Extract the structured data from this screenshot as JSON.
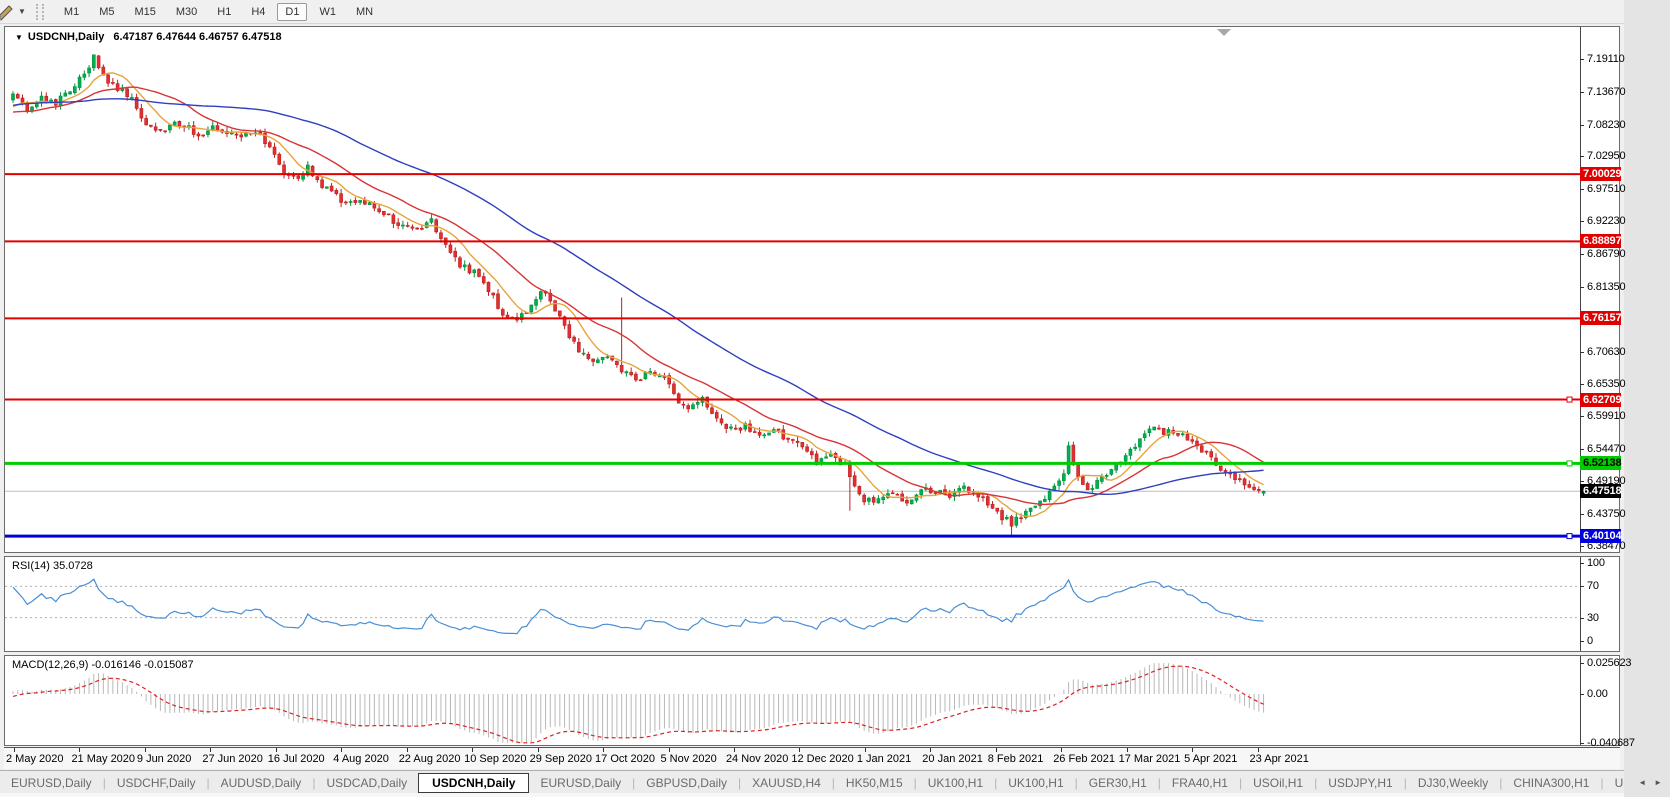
{
  "toolbar": {
    "dropdown_caret": "▼",
    "timeframes": [
      "M1",
      "M5",
      "M15",
      "M30",
      "H1",
      "H4",
      "D1",
      "W1",
      "MN"
    ],
    "active_timeframe": "D1"
  },
  "chart_window": {
    "title": {
      "collapse_caret": "▼",
      "symbol_label": "USDCNH,Daily",
      "ohlc_text": "6.47187 6.47644 6.46757 6.47518"
    }
  },
  "chart_data": {
    "type": "candlestick",
    "symbol": "USDCNH",
    "timeframe": "Daily",
    "current_bar": {
      "open": 6.47187,
      "high": 6.47644,
      "low": 6.46757,
      "close": 6.47518
    },
    "ylim": [
      6.3747,
      7.2439
    ],
    "y_axis_ticks": [
      "7.19110",
      "7.13670",
      "7.08230",
      "7.02950",
      "6.97510",
      "6.92230",
      "6.86790",
      "6.81350",
      "6.70630",
      "6.65350",
      "6.59910",
      "6.54470",
      "6.49190",
      "6.43750",
      "6.38470"
    ],
    "x_axis": {
      "x0": 8,
      "dx": 4.755,
      "date_x0": 10,
      "date_dx": 65.45,
      "dates": [
        "2 May 2020",
        "21 May 2020",
        "9 Jun 2020",
        "27 Jun 2020",
        "16 Jul 2020",
        "4 Aug 2020",
        "22 Aug 2020",
        "10 Sep 2020",
        "29 Sep 2020",
        "17 Oct 2020",
        "5 Nov 2020",
        "24 Nov 2020",
        "12 Dec 2020",
        "1 Jan 2021",
        "20 Jan 2021",
        "8 Feb 2021",
        "26 Feb 2021",
        "17 Mar 2021",
        "5 Apr 2021",
        "23 Apr 2021"
      ]
    },
    "hlines": [
      {
        "price": 7.00029,
        "label": "7.00029",
        "color": "#e00000",
        "thickness": 2,
        "tag_text": "#ffffff",
        "anchor": false
      },
      {
        "price": 6.88897,
        "label": "6.88897",
        "color": "#e00000",
        "thickness": 2,
        "tag_text": "#ffffff",
        "anchor": false
      },
      {
        "price": 6.76157,
        "label": "6.76157",
        "color": "#e00000",
        "thickness": 2,
        "tag_text": "#ffffff",
        "anchor": false
      },
      {
        "price": 6.62709,
        "label": "6.62709",
        "color": "#e00000",
        "thickness": 2,
        "tag_text": "#ffffff",
        "anchor": true
      },
      {
        "price": 6.52138,
        "label": "6.52138",
        "color": "#00cc00",
        "thickness": 3,
        "tag_text": "#000000",
        "anchor": true
      },
      {
        "price": 6.40104,
        "label": "6.40104",
        "color": "#0000dd",
        "thickness": 3,
        "tag_text": "#ffffff",
        "anchor": true
      }
    ],
    "current_price": {
      "price": 6.47518,
      "label": "6.47518",
      "line_color": "#bdbdbd",
      "tag_bg": "#000000",
      "tag_text": "#ffffff"
    },
    "shift_marker_x": 1219,
    "candles": {
      "pre_bars": 60,
      "last_index": 263,
      "up_fill": "#00b050",
      "up_stroke": "#008f3c",
      "down_fill": "#e03030",
      "down_stroke": "#bf1f1f",
      "close_waypoints": [
        [
          -60,
          7.03
        ],
        [
          -45,
          7.12
        ],
        [
          -30,
          7.15
        ],
        [
          -15,
          7.09
        ],
        [
          -5,
          7.1
        ],
        [
          0,
          7.128
        ],
        [
          3,
          7.108
        ],
        [
          6,
          7.125
        ],
        [
          9,
          7.118
        ],
        [
          12,
          7.142
        ],
        [
          15,
          7.168
        ],
        [
          17,
          7.192
        ],
        [
          19,
          7.162
        ],
        [
          22,
          7.144
        ],
        [
          25,
          7.126
        ],
        [
          28,
          7.082
        ],
        [
          31,
          7.072
        ],
        [
          34,
          7.088
        ],
        [
          37,
          7.076
        ],
        [
          40,
          7.062
        ],
        [
          42,
          7.078
        ],
        [
          45,
          7.068
        ],
        [
          48,
          7.058
        ],
        [
          51,
          7.072
        ],
        [
          54,
          7.044
        ],
        [
          57,
          7.004
        ],
        [
          60,
          6.992
        ],
        [
          62,
          7.012
        ],
        [
          65,
          6.978
        ],
        [
          68,
          6.966
        ],
        [
          70,
          6.952
        ],
        [
          73,
          6.962
        ],
        [
          76,
          6.942
        ],
        [
          79,
          6.93
        ],
        [
          82,
          6.912
        ],
        [
          85,
          6.908
        ],
        [
          88,
          6.922
        ],
        [
          91,
          6.882
        ],
        [
          94,
          6.848
        ],
        [
          97,
          6.838
        ],
        [
          100,
          6.806
        ],
        [
          103,
          6.772
        ],
        [
          106,
          6.758
        ],
        [
          109,
          6.782
        ],
        [
          111,
          6.806
        ],
        [
          113,
          6.79
        ],
        [
          116,
          6.746
        ],
        [
          119,
          6.708
        ],
        [
          122,
          6.692
        ],
        [
          125,
          6.702
        ],
        [
          128,
          6.678
        ],
        [
          131,
          6.658
        ],
        [
          134,
          6.672
        ],
        [
          137,
          6.662
        ],
        [
          139,
          6.632
        ],
        [
          142,
          6.612
        ],
        [
          145,
          6.628
        ],
        [
          148,
          6.592
        ],
        [
          151,
          6.578
        ],
        [
          154,
          6.582
        ],
        [
          157,
          6.568
        ],
        [
          160,
          6.578
        ],
        [
          163,
          6.558
        ],
        [
          166,
          6.548
        ],
        [
          169,
          6.525
        ],
        [
          172,
          6.532
        ],
        [
          175,
          6.52
        ],
        [
          177,
          6.478
        ],
        [
          179,
          6.458
        ],
        [
          182,
          6.462
        ],
        [
          185,
          6.472
        ],
        [
          188,
          6.455
        ],
        [
          191,
          6.482
        ],
        [
          194,
          6.476
        ],
        [
          197,
          6.462
        ],
        [
          200,
          6.482
        ],
        [
          203,
          6.468
        ],
        [
          206,
          6.448
        ],
        [
          208,
          6.432
        ],
        [
          210,
          6.422
        ],
        [
          213,
          6.442
        ],
        [
          216,
          6.462
        ],
        [
          219,
          6.478
        ],
        [
          221,
          6.505
        ],
        [
          222,
          6.545
        ],
        [
          224,
          6.502
        ],
        [
          226,
          6.478
        ],
        [
          229,
          6.498
        ],
        [
          232,
          6.518
        ],
        [
          235,
          6.54
        ],
        [
          238,
          6.568
        ],
        [
          240,
          6.578
        ],
        [
          243,
          6.572
        ],
        [
          246,
          6.568
        ],
        [
          248,
          6.556
        ],
        [
          250,
          6.545
        ],
        [
          252,
          6.53
        ],
        [
          254,
          6.515
        ],
        [
          256,
          6.5
        ],
        [
          258,
          6.49
        ],
        [
          260,
          6.482
        ],
        [
          263,
          6.47518
        ]
      ],
      "spikes": [
        {
          "i": 17,
          "high": 7.196
        },
        {
          "i": 128,
          "high": 6.796
        },
        {
          "i": 176,
          "low": 6.443
        },
        {
          "i": 210,
          "low": 6.4015
        },
        {
          "i": 222,
          "high": 6.556
        }
      ],
      "last_candle": [
        6.47187,
        6.47644,
        6.46757,
        6.47518
      ]
    },
    "moving_averages": [
      {
        "name": "fast-ma",
        "period": 8,
        "color": "#e8a33c"
      },
      {
        "name": "medium-ma",
        "period": 21,
        "color": "#d93434"
      },
      {
        "name": "slow-ma",
        "period": 55,
        "color": "#2f3fbf"
      }
    ],
    "indicators": {
      "rsi": {
        "label": "RSI(14) 35.0728",
        "period": 14,
        "value": 35.0728,
        "scale_ticks": [
          "100",
          "70",
          "30",
          "0"
        ],
        "levels": [
          70,
          30
        ],
        "line_color": "#4a8fd4",
        "level_color": "#b0b0b0"
      },
      "macd": {
        "label": "MACD(12,26,9) -0.016146 -0.015087",
        "fast": 12,
        "slow": 26,
        "signal": 9,
        "main_value": -0.016146,
        "signal_value": -0.015087,
        "scale_ticks": [
          "0.025623",
          "0.00",
          "-0.040687"
        ],
        "scale_values": [
          0.025623,
          0.0,
          -0.040687
        ],
        "hist_color": "#b8b8b8",
        "signal_color": "#dd2222"
      }
    }
  },
  "tabbar": {
    "tabs": [
      "EURUSD,Daily",
      "USDCHF,Daily",
      "AUDUSD,Daily",
      "USDCAD,Daily",
      "USDCNH,Daily",
      "EURUSD,Daily",
      "GBPUSD,Daily",
      "XAUUSD,H4",
      "HK50,M15",
      "UK100,H1",
      "UK100,H1",
      "GER30,H1",
      "FRA40,H1",
      "USOil,H1",
      "USDJPY,H1",
      "DJ30,Weekly",
      "CHINA300,H1",
      "U"
    ],
    "active_index": 4,
    "scroll_left": "◄",
    "scroll_right": "►"
  }
}
